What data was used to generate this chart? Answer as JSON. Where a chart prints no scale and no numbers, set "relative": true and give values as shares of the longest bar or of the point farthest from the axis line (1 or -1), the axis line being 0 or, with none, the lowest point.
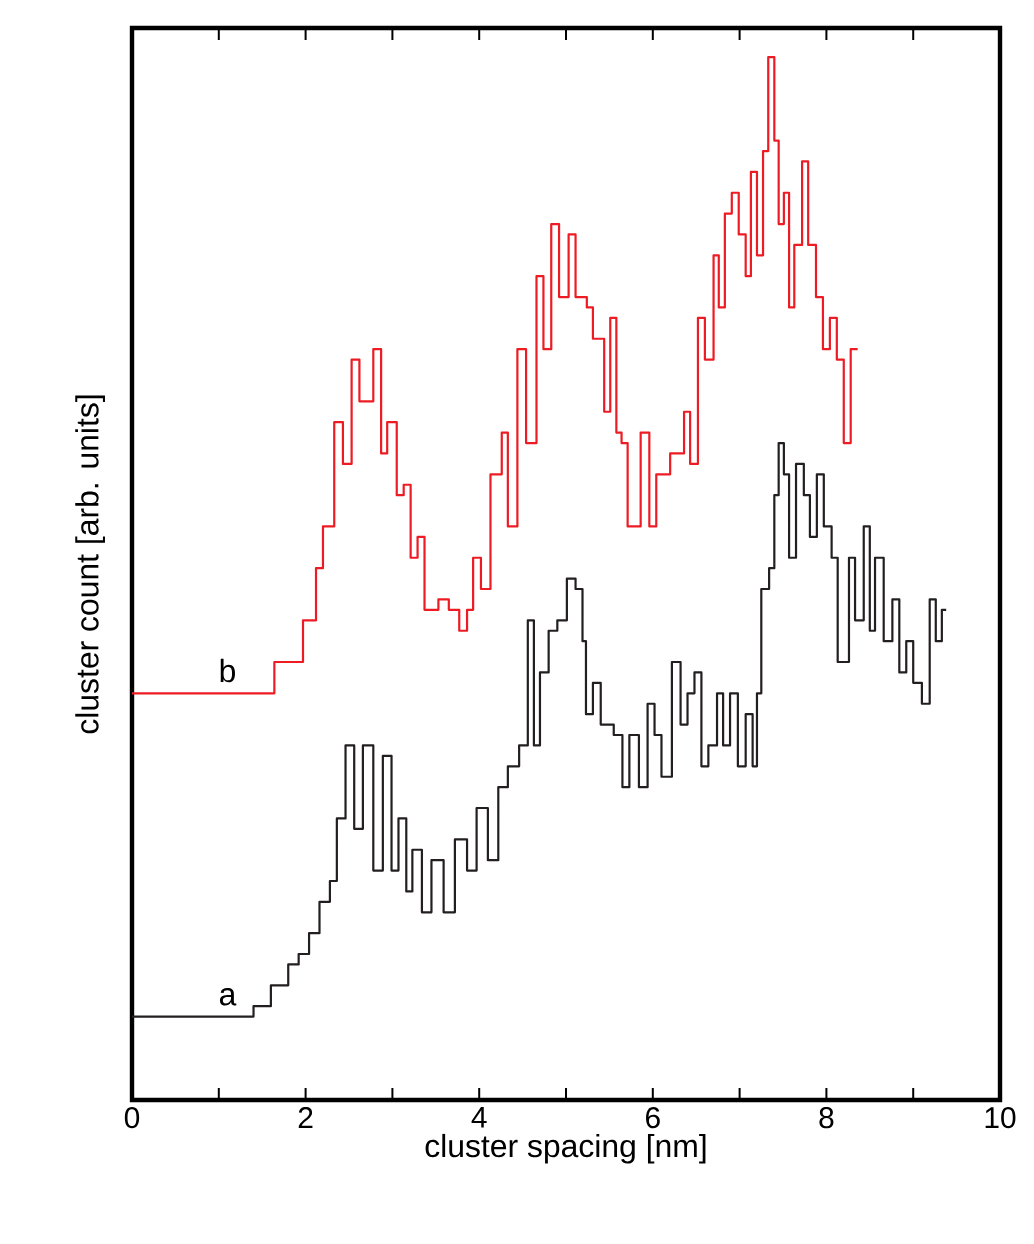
{
  "chart_data": {
    "type": "step",
    "xlabel": "cluster spacing [nm]",
    "ylabel": "cluster count [arb. units]",
    "relative": true,
    "tick_labels": "x",
    "xlim": [
      0,
      10
    ],
    "xticks": [
      0,
      {
        "value": 1,
        "label": null
      },
      2,
      {
        "value": 3,
        "label": null
      },
      4,
      {
        "value": 5,
        "label": null
      },
      6,
      {
        "value": 7,
        "label": null
      },
      8,
      {
        "value": 9,
        "label": null
      },
      10
    ],
    "series": [
      {
        "name": "a",
        "color": "#231f20",
        "x": [
          0,
          1.12,
          1.4,
          1.6,
          1.8,
          1.92,
          2.04,
          2.16,
          2.28,
          2.36,
          2.46,
          2.56,
          2.66,
          2.78,
          2.89,
          2.99,
          3.07,
          3.16,
          3.23,
          3.34,
          3.45,
          3.59,
          3.72,
          3.86,
          3.97,
          4.1,
          4.22,
          4.33,
          4.46,
          4.56,
          4.63,
          4.7,
          4.8,
          4.9,
          5.01,
          5.11,
          5.19,
          5.23,
          5.31,
          5.4,
          5.55,
          5.65,
          5.73,
          5.84,
          5.94,
          6.02,
          6.1,
          6.22,
          6.32,
          6.4,
          6.48,
          6.56,
          6.64,
          6.74,
          6.81,
          6.89,
          6.98,
          7.07,
          7.15,
          7.2,
          7.25,
          7.34,
          7.4,
          7.45,
          7.51,
          7.57,
          7.65,
          7.74,
          7.81,
          7.89,
          7.97,
          8.06,
          8.13,
          8.26,
          8.33,
          8.43,
          8.5,
          8.56,
          8.66,
          8.76,
          8.84,
          8.92,
          9.0,
          9.1,
          9.19,
          9.26,
          9.33,
          9.38
        ],
        "values": [
          0.08,
          0.08,
          0.09,
          0.11,
          0.13,
          0.14,
          0.16,
          0.19,
          0.21,
          0.27,
          0.34,
          0.26,
          0.34,
          0.22,
          0.33,
          0.22,
          0.27,
          0.2,
          0.24,
          0.18,
          0.23,
          0.18,
          0.25,
          0.22,
          0.28,
          0.23,
          0.3,
          0.32,
          0.34,
          0.46,
          0.34,
          0.41,
          0.45,
          0.46,
          0.5,
          0.49,
          0.44,
          0.37,
          0.4,
          0.36,
          0.35,
          0.3,
          0.35,
          0.3,
          0.38,
          0.35,
          0.31,
          0.42,
          0.36,
          0.39,
          0.41,
          0.32,
          0.34,
          0.39,
          0.34,
          0.39,
          0.32,
          0.37,
          0.32,
          0.39,
          0.49,
          0.51,
          0.58,
          0.63,
          0.6,
          0.52,
          0.61,
          0.58,
          0.54,
          0.6,
          0.55,
          0.52,
          0.42,
          0.52,
          0.46,
          0.55,
          0.45,
          0.52,
          0.44,
          0.48,
          0.41,
          0.44,
          0.4,
          0.38,
          0.48,
          0.44,
          0.47,
          0.47
        ]
      },
      {
        "name": "b",
        "color": "#ed1c24",
        "x": [
          0,
          1.5,
          1.64,
          1.87,
          1.97,
          2.12,
          2.2,
          2.33,
          2.43,
          2.53,
          2.62,
          2.78,
          2.87,
          2.94,
          3.05,
          3.13,
          3.21,
          3.29,
          3.37,
          3.53,
          3.65,
          3.77,
          3.86,
          3.93,
          4.02,
          4.13,
          4.26,
          4.33,
          4.44,
          4.54,
          4.66,
          4.74,
          4.83,
          4.92,
          5.03,
          5.11,
          5.24,
          5.31,
          5.44,
          5.51,
          5.58,
          5.64,
          5.71,
          5.86,
          5.96,
          6.04,
          6.2,
          6.36,
          6.43,
          6.52,
          6.6,
          6.7,
          6.76,
          6.83,
          6.91,
          6.99,
          7.07,
          7.13,
          7.2,
          7.27,
          7.33,
          7.4,
          7.45,
          7.51,
          7.57,
          7.63,
          7.72,
          7.79,
          7.88,
          7.96,
          8.04,
          8.12,
          8.2,
          8.28,
          8.36
        ],
        "values": [
          0.39,
          0.39,
          0.42,
          0.42,
          0.46,
          0.51,
          0.55,
          0.65,
          0.61,
          0.71,
          0.67,
          0.72,
          0.62,
          0.65,
          0.58,
          0.59,
          0.52,
          0.54,
          0.47,
          0.48,
          0.47,
          0.45,
          0.47,
          0.52,
          0.49,
          0.6,
          0.64,
          0.55,
          0.72,
          0.63,
          0.79,
          0.72,
          0.84,
          0.77,
          0.83,
          0.77,
          0.76,
          0.73,
          0.66,
          0.75,
          0.64,
          0.63,
          0.55,
          0.64,
          0.55,
          0.6,
          0.62,
          0.66,
          0.61,
          0.75,
          0.71,
          0.81,
          0.76,
          0.85,
          0.87,
          0.83,
          0.79,
          0.89,
          0.81,
          0.91,
          1.0,
          0.92,
          0.84,
          0.87,
          0.76,
          0.82,
          0.9,
          0.82,
          0.77,
          0.72,
          0.75,
          0.71,
          0.63,
          0.72,
          0.72
        ]
      }
    ]
  }
}
